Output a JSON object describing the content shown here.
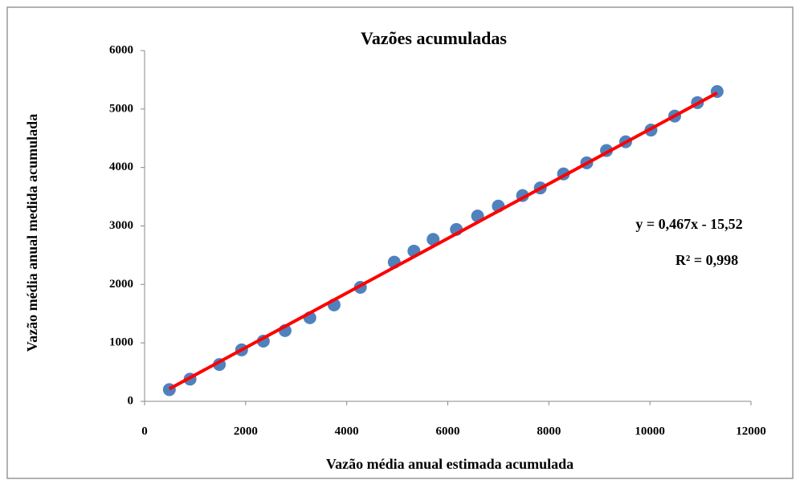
{
  "chart_data": {
    "type": "scatter",
    "title": "Vazões acumuladas",
    "x_label": "Vazão média anual estimada acumulada",
    "y_label": "Vazão média anual medida acumulada",
    "series": [
      {
        "color": "#4f81bd",
        "x": [
          490,
          900,
          1480,
          1920,
          2350,
          2780,
          3270,
          3750,
          4270,
          4940,
          5330,
          5710,
          6170,
          6590,
          7000,
          7480,
          7830,
          8290,
          8750,
          9140,
          9520,
          10020,
          10490,
          10940,
          11330
        ],
        "values": [
          200,
          380,
          630,
          880,
          1030,
          1210,
          1430,
          1650,
          1950,
          2380,
          2570,
          2770,
          2940,
          3170,
          3340,
          3520,
          3650,
          3890,
          4080,
          4290,
          4440,
          4640,
          4880,
          5110,
          5300
        ]
      }
    ],
    "trendline": {
      "slope": 0.467,
      "intercept": -15.52,
      "color": "#ff0000",
      "equation": "y = 0,467x - 15,52",
      "r2_label": "R² = 0,998"
    },
    "xlim": [
      0,
      12000
    ],
    "xticks": [
      0,
      2000,
      4000,
      6000,
      8000,
      10000,
      12000
    ],
    "ylim": [
      0,
      6000
    ],
    "yticks": [
      0,
      1000,
      2000,
      3000,
      4000,
      5000,
      6000
    ]
  }
}
